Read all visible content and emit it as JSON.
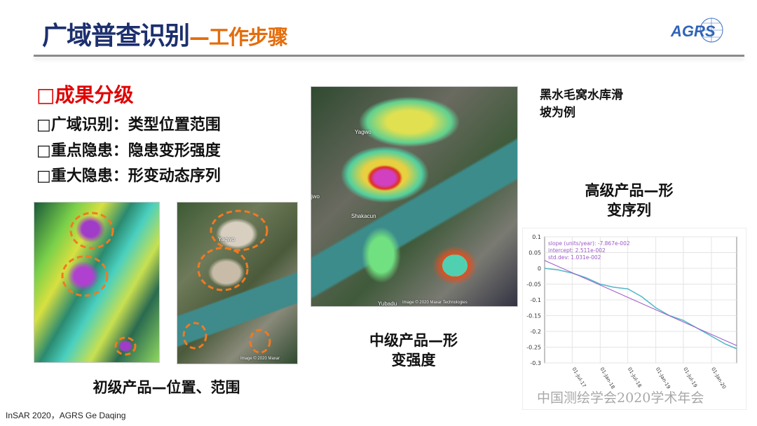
{
  "header": {
    "title_main": "广域普查识别",
    "title_sub": "—工作步骤",
    "logo_text": "AGRS"
  },
  "bullets": {
    "heading": "□成果分级",
    "items": [
      "□广域识别：类型位置范围",
      "□重点隐患：隐患变形强度",
      "□重大隐患：形变动态序列"
    ]
  },
  "captions": {
    "primary": "初级产品—位置、范围",
    "intermediate_1": "中级产品—形",
    "intermediate_2": "变强度",
    "advanced_1": "高级产品—形",
    "advanced_2": "变序列"
  },
  "note": {
    "line1": "黑水毛窝水库滑",
    "line2": "坡为例"
  },
  "map_labels": {
    "yagwo": "Yagwo",
    "jwo": "jwo",
    "shakacun": "Shakacun",
    "yubadu": "Yubadu",
    "copyright": "Image © 2020 Maxar Technologies"
  },
  "img2_labels": {
    "yagwo": "Yagwo",
    "copyright": "Image © 2020 Maxar"
  },
  "watermark": "中国测绘学会2020学术年会",
  "footer": "InSAR  2020，AGRS  Ge Daqing",
  "colors": {
    "title": "#1c2f6e",
    "accent": "#e46c0a",
    "heading": "#e00000",
    "series": "#4fb8c8",
    "fit": "#9b59c8"
  },
  "chart_data": {
    "type": "line",
    "annotations": [
      "slope (units/year): -7.867e-002",
      "intercept: 2.511e-002",
      "std.dev: 1.031e-002"
    ],
    "ylim": [
      -0.3,
      0.1
    ],
    "yticks": [
      "0.1",
      "0.05",
      "0",
      "-0.05",
      "-0.1",
      "-0.15",
      "-0.2",
      "-0.25",
      "-0.3"
    ],
    "xlim": [
      "2017-01-01",
      "2020-06-15"
    ],
    "xticks": [
      {
        "label": "01-Jul-17",
        "date": "2017-07-01"
      },
      {
        "label": "01-Jan-18",
        "date": "2018-01-01"
      },
      {
        "label": "01-Jul-18",
        "date": "2018-07-01"
      },
      {
        "label": "01-Jan-19",
        "date": "2019-01-01"
      },
      {
        "label": "01-Jul-19",
        "date": "2019-07-01"
      },
      {
        "label": "01-Jan-20",
        "date": "2020-01-01"
      }
    ],
    "grid": true,
    "series": [
      {
        "x": [
          "2017-01-01",
          "2017-04-01",
          "2017-07-01",
          "2017-10-01",
          "2018-01-01",
          "2018-04-01",
          "2018-07-01",
          "2018-10-01",
          "2019-01-01",
          "2019-04-01",
          "2019-07-01",
          "2019-10-01",
          "2020-01-01",
          "2020-04-01",
          "2020-06-15"
        ],
        "y": [
          0,
          -0.005,
          -0.015,
          -0.03,
          -0.05,
          -0.06,
          -0.065,
          -0.09,
          -0.125,
          -0.15,
          -0.165,
          -0.19,
          -0.215,
          -0.24,
          -0.255
        ]
      },
      {
        "x": [
          "2017-01-01",
          "2020-06-15"
        ],
        "y": [
          0.025,
          -0.245
        ]
      }
    ]
  }
}
